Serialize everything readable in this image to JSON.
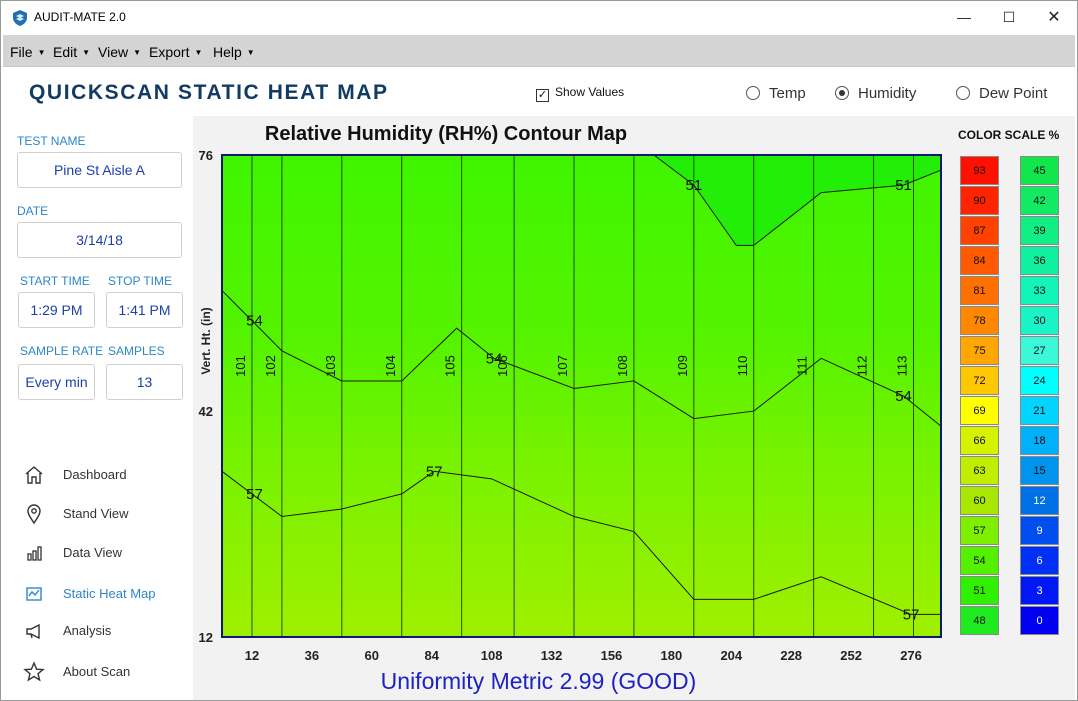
{
  "app": {
    "title": "AUDIT-MATE 2.0",
    "logo_icon": "shield-logo-icon"
  },
  "window_controls": {
    "minimize": "—",
    "maximize": "☐",
    "close": "✕"
  },
  "menu": [
    "File",
    "Edit",
    "View",
    "Export",
    "Help"
  ],
  "header": {
    "page_title": "QUICKSCAN STATIC HEAT MAP",
    "show_values_label": "Show Values",
    "show_values_checked": true,
    "modes": [
      {
        "label": "Temp",
        "selected": false
      },
      {
        "label": "Humidity",
        "selected": true
      },
      {
        "label": "Dew Point",
        "selected": false
      }
    ]
  },
  "test": {
    "name_label": "TEST NAME",
    "name": "Pine St Aisle A",
    "date_label": "DATE",
    "date": "3/14/18",
    "start_label": "START TIME",
    "start": "1:29 PM",
    "stop_label": "STOP TIME",
    "stop": "1:41 PM",
    "rate_label": "SAMPLE RATE",
    "rate": "Every min",
    "samples_label": "SAMPLES",
    "samples": "13"
  },
  "nav": [
    {
      "label": "Dashboard",
      "icon": "home-icon",
      "active": false
    },
    {
      "label": "Stand View",
      "icon": "map-pin-icon",
      "active": false
    },
    {
      "label": "Data View",
      "icon": "bar-chart-icon",
      "active": false
    },
    {
      "label": "Static Heat Map",
      "icon": "heat-map-icon",
      "active": true
    },
    {
      "label": "Analysis",
      "icon": "megaphone-icon",
      "active": false
    },
    {
      "label": "About Scan",
      "icon": "star-icon",
      "active": false
    }
  ],
  "chart_data": {
    "type": "heatmap",
    "title": "Relative Humidity (RH%) Contour Map",
    "ylabel": "Vert. Ht. (in)",
    "xlabel": "",
    "x_ticks": [
      12,
      36,
      60,
      84,
      108,
      132,
      156,
      180,
      204,
      228,
      252,
      276
    ],
    "y_ticks": [
      12,
      42,
      76
    ],
    "xlim": [
      0,
      288
    ],
    "ylim": [
      12,
      76
    ],
    "stands": [
      {
        "id": "101",
        "x": 12
      },
      {
        "id": "102",
        "x": 24
      },
      {
        "id": "103",
        "x": 48
      },
      {
        "id": "104",
        "x": 72
      },
      {
        "id": "105",
        "x": 96
      },
      {
        "id": "106",
        "x": 117
      },
      {
        "id": "107",
        "x": 141
      },
      {
        "id": "108",
        "x": 165
      },
      {
        "id": "109",
        "x": 189
      },
      {
        "id": "110",
        "x": 213
      },
      {
        "id": "111",
        "x": 237
      },
      {
        "id": "112",
        "x": 261
      },
      {
        "id": "113",
        "x": 277
      }
    ],
    "contours": [
      {
        "level": 51,
        "label_positions": [
          [
            189,
            72
          ],
          [
            273,
            72
          ]
        ],
        "points": [
          [
            173,
            76
          ],
          [
            189,
            72
          ],
          [
            206,
            64
          ],
          [
            213,
            64
          ],
          [
            240,
            71
          ],
          [
            273,
            72
          ],
          [
            288,
            74
          ]
        ]
      },
      {
        "level": 54,
        "label_positions": [
          [
            13,
            54
          ],
          [
            109,
            49
          ],
          [
            273,
            44
          ]
        ],
        "points": [
          [
            0,
            58
          ],
          [
            24,
            50
          ],
          [
            48,
            46
          ],
          [
            72,
            46
          ],
          [
            94,
            53
          ],
          [
            109,
            49
          ],
          [
            141,
            45
          ],
          [
            165,
            46
          ],
          [
            189,
            41
          ],
          [
            213,
            42
          ],
          [
            240,
            49
          ],
          [
            273,
            44
          ],
          [
            288,
            40
          ]
        ]
      },
      {
        "level": 57,
        "label_positions": [
          [
            13,
            31
          ],
          [
            85,
            34
          ],
          [
            276,
            15
          ]
        ],
        "points": [
          [
            0,
            34
          ],
          [
            24,
            28
          ],
          [
            48,
            29
          ],
          [
            72,
            31
          ],
          [
            85,
            34
          ],
          [
            108,
            33
          ],
          [
            141,
            28
          ],
          [
            165,
            26
          ],
          [
            189,
            17
          ],
          [
            213,
            17
          ],
          [
            240,
            20
          ],
          [
            276,
            15
          ],
          [
            288,
            15
          ]
        ]
      }
    ],
    "color_scale_title": "COLOR SCALE %",
    "scale_left": [
      {
        "value": "93",
        "color": "#ff1100"
      },
      {
        "value": "90",
        "color": "#ff2400"
      },
      {
        "value": "87",
        "color": "#ff4200"
      },
      {
        "value": "84",
        "color": "#ff5a00"
      },
      {
        "value": "81",
        "color": "#ff7000"
      },
      {
        "value": "78",
        "color": "#ff8800"
      },
      {
        "value": "75",
        "color": "#ffa600"
      },
      {
        "value": "72",
        "color": "#ffc800"
      },
      {
        "value": "69",
        "color": "#ffff00"
      },
      {
        "value": "66",
        "color": "#d6f200"
      },
      {
        "value": "63",
        "color": "#c0ee00"
      },
      {
        "value": "60",
        "color": "#a8e800"
      },
      {
        "value": "57",
        "color": "#7fef00"
      },
      {
        "value": "54",
        "color": "#55f000"
      },
      {
        "value": "51",
        "color": "#2ef000"
      },
      {
        "value": "48",
        "color": "#1fea1f"
      }
    ],
    "scale_right": [
      {
        "value": "45",
        "color": "#13e64a"
      },
      {
        "value": "42",
        "color": "#11ea62"
      },
      {
        "value": "39",
        "color": "#11ee84"
      },
      {
        "value": "36",
        "color": "#0ff0a0"
      },
      {
        "value": "33",
        "color": "#12f5b8"
      },
      {
        "value": "30",
        "color": "#18f4c8"
      },
      {
        "value": "27",
        "color": "#3cf7d8"
      },
      {
        "value": "24",
        "color": "#00ffff"
      },
      {
        "value": "21",
        "color": "#00d4ff"
      },
      {
        "value": "18",
        "color": "#00b0f8"
      },
      {
        "value": "15",
        "color": "#0094ee"
      },
      {
        "value": "12",
        "color": "#0070e6"
      },
      {
        "value": "9",
        "color": "#004ef0"
      },
      {
        "value": "6",
        "color": "#0030f4"
      },
      {
        "value": "3",
        "color": "#0018f4"
      },
      {
        "value": "0",
        "color": "#0000ee"
      }
    ]
  },
  "footer": {
    "uniformity": "Uniformity Metric 2.99 (GOOD)"
  }
}
